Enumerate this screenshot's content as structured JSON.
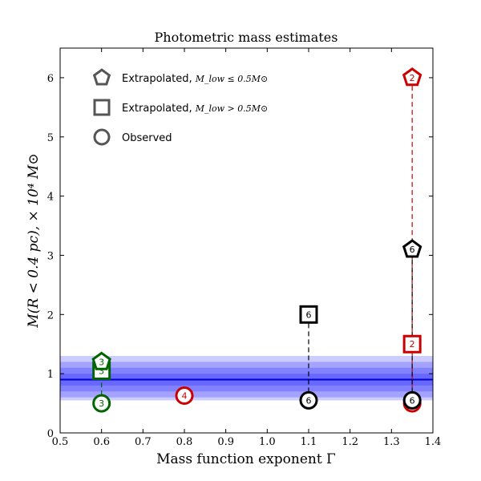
{
  "chart_data": {
    "type": "scatter",
    "title": "Photometric mass estimates",
    "xlabel": "Mass function exponent Γ",
    "ylabel": "M(R < 0.4 pc),  × 10⁴ M⊙",
    "xlim": [
      0.5,
      1.4
    ],
    "ylim": [
      0,
      6.5
    ],
    "x_ticks": [
      "0.5",
      "0.6",
      "0.7",
      "0.8",
      "0.9",
      "1.0",
      "1.1",
      "1.2",
      "1.3",
      "1.4"
    ],
    "y_ticks": [
      "0",
      "1",
      "2",
      "3",
      "4",
      "5",
      "6"
    ],
    "reference_band": {
      "center": 0.9,
      "bands": [
        [
          0.8,
          1.0
        ],
        [
          0.7,
          1.1
        ],
        [
          0.6,
          1.2
        ],
        [
          0.55,
          1.3
        ]
      ],
      "color": "#0000ff"
    },
    "legend": {
      "placement": "top-left",
      "entries": [
        {
          "marker": "pentagon",
          "label": "Extrapolated, ",
          "math": "M_low ≤ 0.5M⊙"
        },
        {
          "marker": "square",
          "label": "Extrapolated, ",
          "math": "M_low > 0.5M⊙"
        },
        {
          "marker": "circle",
          "label": "Observed",
          "math": ""
        }
      ]
    },
    "series": [
      {
        "color": "#006400",
        "points": [
          {
            "marker": "circle",
            "x": 0.6,
            "y": 0.5,
            "label": "3"
          },
          {
            "marker": "square",
            "x": 0.6,
            "y": 1.05,
            "label": "3"
          },
          {
            "marker": "pentagon",
            "x": 0.6,
            "y": 1.2,
            "label": "3"
          }
        ]
      },
      {
        "color": "#cc0000",
        "points": [
          {
            "marker": "circle",
            "x": 0.8,
            "y": 0.63,
            "label": "4"
          }
        ]
      },
      {
        "color": "#000000",
        "points": [
          {
            "marker": "circle",
            "x": 1.1,
            "y": 0.55,
            "label": "6"
          },
          {
            "marker": "square",
            "x": 1.1,
            "y": 2.0,
            "label": "6"
          }
        ]
      },
      {
        "color": "#cc0000",
        "points": [
          {
            "marker": "circle",
            "x": 1.35,
            "y": 0.5,
            "label": "2"
          },
          {
            "marker": "square",
            "x": 1.35,
            "y": 1.5,
            "label": "2"
          },
          {
            "marker": "pentagon",
            "x": 1.35,
            "y": 6.0,
            "label": "2"
          }
        ]
      },
      {
        "color": "#000000",
        "points": [
          {
            "marker": "circle",
            "x": 1.35,
            "y": 0.55,
            "label": "6"
          },
          {
            "marker": "pentagon",
            "x": 1.35,
            "y": 3.1,
            "label": "6"
          }
        ]
      }
    ]
  }
}
